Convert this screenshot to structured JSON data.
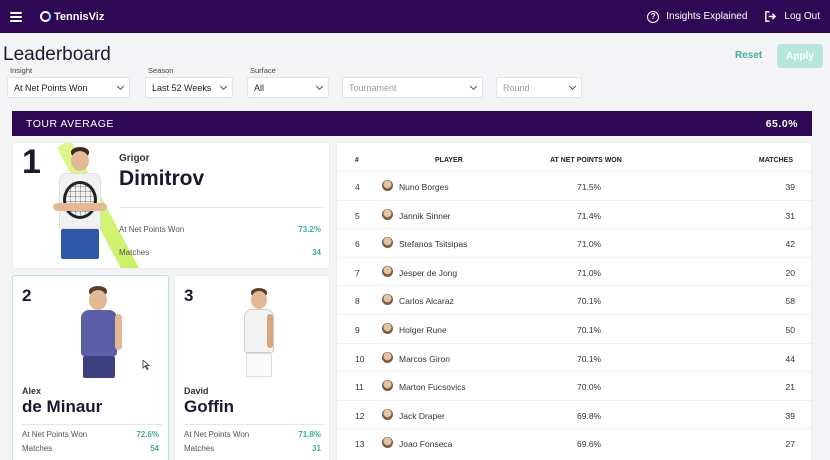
{
  "app": {
    "name": "TennisViz",
    "insights_label": "Insights Explained",
    "logout_label": "Log Out"
  },
  "page": {
    "title": "Leaderboard",
    "reset_label": "Reset",
    "apply_label": "Apply"
  },
  "filters": [
    {
      "label": "Insight",
      "value": "At Net Points Won",
      "placeholder": false
    },
    {
      "label": "Season",
      "value": "Last 52 Weeks",
      "placeholder": false
    },
    {
      "label": "Surface",
      "value": "All",
      "placeholder": false
    },
    {
      "label": "",
      "value": "Tournament",
      "placeholder": true
    },
    {
      "label": "",
      "value": "Round",
      "placeholder": true
    }
  ],
  "tour_average": {
    "label": "TOUR AVERAGE",
    "value": "65.0%"
  },
  "top_players": [
    {
      "rank": "1",
      "first_name": "Grigor",
      "last_name": "Dimitrov",
      "stat_label": "At Net Points Won",
      "stat_value": "73.2%",
      "matches_label": "Matches",
      "matches": "34"
    },
    {
      "rank": "2",
      "first_name": "Alex",
      "last_name": "de Minaur",
      "stat_label": "At Net Points Won",
      "stat_value": "72.6%",
      "matches_label": "Matches",
      "matches": "54"
    },
    {
      "rank": "3",
      "first_name": "David",
      "last_name": "Goffin",
      "stat_label": "At Net Points Won",
      "stat_value": "71.8%",
      "matches_label": "Matches",
      "matches": "31"
    }
  ],
  "table": {
    "headers": {
      "rank": "#",
      "player": "PLAYER",
      "stat": "AT NET POINTS WON",
      "matches": "MATCHES"
    },
    "rows": [
      {
        "rank": "4",
        "player": "Nuno Borges",
        "stat": "71.5%",
        "matches": "39"
      },
      {
        "rank": "5",
        "player": "Jannik Sinner",
        "stat": "71.4%",
        "matches": "31"
      },
      {
        "rank": "6",
        "player": "Stefanos Tsitsipas",
        "stat": "71.0%",
        "matches": "42"
      },
      {
        "rank": "7",
        "player": "Jesper de Jong",
        "stat": "71.0%",
        "matches": "20"
      },
      {
        "rank": "8",
        "player": "Carlos Alcaraz",
        "stat": "70.1%",
        "matches": "58"
      },
      {
        "rank": "9",
        "player": "Holger Rune",
        "stat": "70.1%",
        "matches": "50"
      },
      {
        "rank": "10",
        "player": "Marcos Giron",
        "stat": "70.1%",
        "matches": "44"
      },
      {
        "rank": "11",
        "player": "Marton Fucsovics",
        "stat": "70.0%",
        "matches": "21"
      },
      {
        "rank": "12",
        "player": "Jack Draper",
        "stat": "69.8%",
        "matches": "39"
      },
      {
        "rank": "13",
        "player": "Joao Fonseca",
        "stat": "69.6%",
        "matches": "27"
      }
    ]
  },
  "colors": {
    "brand": "#2e0854",
    "accent": "#3fae9e",
    "apply_disabled": "#b7e7dc"
  },
  "icons": [
    "menu-icon",
    "tennisviz-logo-icon",
    "help-circle-icon",
    "logout-icon",
    "chevron-down-icon",
    "player-avatar-icon",
    "mouse-cursor-icon"
  ]
}
